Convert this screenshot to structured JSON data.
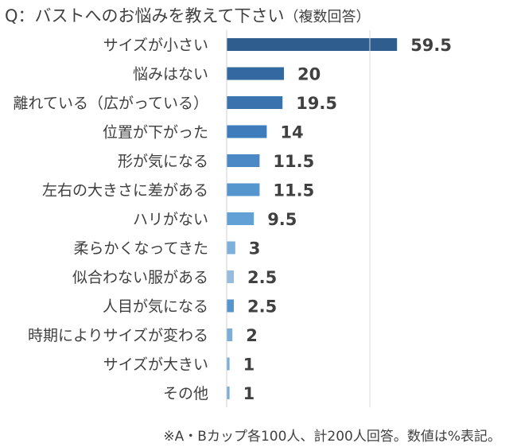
{
  "chart_data": {
    "type": "bar",
    "orientation": "horizontal",
    "title": "Q：バストへのお悩み",
    "title_suffix": "を教えて下さい",
    "subtitle": "（複数回答）",
    "categories": [
      "サイズが小さい",
      "悩みはない",
      "離れている（広がっている）",
      "位置が下がった",
      "形が気になる",
      "左右の大きさに差がある",
      "ハリがない",
      "柔らかくなってきた",
      "似合わない服がある",
      "人目が気になる",
      "時期によりサイズが変わる",
      "サイズが大きい",
      "その他"
    ],
    "values": [
      59.5,
      20,
      19.5,
      14,
      11.5,
      11.5,
      9.5,
      3,
      2.5,
      2.5,
      2,
      1,
      1
    ],
    "data_labels": [
      "59.5",
      "20",
      "19.5",
      "14",
      "11.5",
      "11.5",
      "9.5",
      "3",
      "2.5",
      "2.5",
      "2",
      "1",
      "1"
    ],
    "bar_colors": [
      "#2e5d8e",
      "#3468a0",
      "#3a72ad",
      "#3f7cbb",
      "#4a89c6",
      "#5596cf",
      "#62a1d6",
      "#7db1dc",
      "#95bde0",
      "#5596cf",
      "#7aaed9",
      "#7aaed9",
      "#7aaed9"
    ],
    "xlim": [
      0,
      60
    ],
    "grid": false,
    "xlabel": "",
    "ylabel": "",
    "note": "※A・Bカップ各100人、計200人回答。数値は%表記。"
  }
}
